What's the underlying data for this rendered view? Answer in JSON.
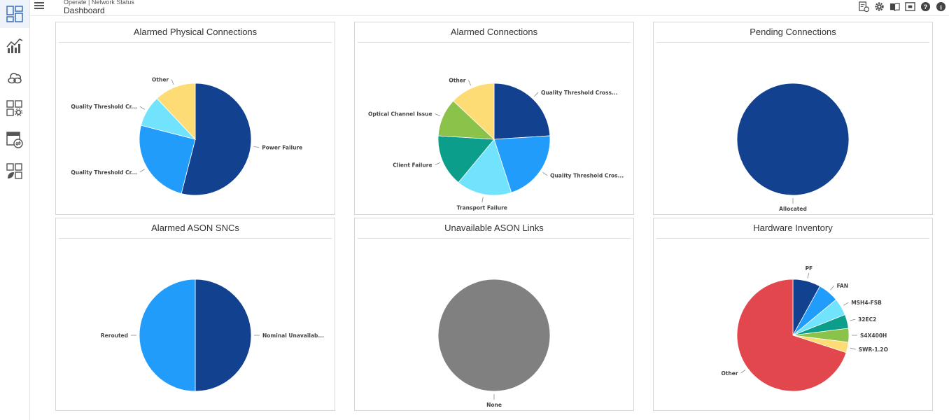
{
  "header": {
    "breadcrumb": "Operate | Network Status",
    "title": "Dashboard"
  },
  "sidebar": {
    "items": [
      {
        "name": "dashboard",
        "icon": "dashboard-grid-icon"
      },
      {
        "name": "performance",
        "icon": "line-chart-icon"
      },
      {
        "name": "connections",
        "icon": "connection-cloud-icon"
      },
      {
        "name": "configuration",
        "icon": "grid-gear-icon"
      },
      {
        "name": "services",
        "icon": "panel-exchange-icon"
      },
      {
        "name": "inventory",
        "icon": "grid-leaf-icon"
      }
    ]
  },
  "toolbar": {
    "icons": [
      "report-clock-icon",
      "gear-icon",
      "book-icon",
      "screen-capture-icon",
      "help-icon",
      "info-icon"
    ]
  },
  "colors": {
    "dark_blue": "#12418f",
    "blue": "#229cfb",
    "light_cyan": "#72e3fd",
    "yellow": "#fddc76",
    "teal": "#0a9e8b",
    "green": "#8bc249",
    "grey": "#808080",
    "red": "#e3474e"
  },
  "panels": {
    "p1": {
      "title": "Alarmed Physical Connections"
    },
    "p2": {
      "title": "Alarmed Connections"
    },
    "p3": {
      "title": "Pending Connections"
    },
    "p4": {
      "title": "Alarmed ASON SNCs"
    },
    "p5": {
      "title": "Unavailable ASON Links"
    },
    "p6": {
      "title": "Hardware Inventory"
    }
  },
  "chart_data": [
    {
      "type": "pie",
      "title": "Alarmed Physical Connections",
      "categories": [
        "Power Failure",
        "Quality Threshold Cr...",
        "Quality Threshold Cr...",
        "Other"
      ],
      "values": [
        54,
        25,
        9,
        12
      ],
      "colors": [
        "#12418f",
        "#229cfb",
        "#72e3fd",
        "#fddc76"
      ]
    },
    {
      "type": "pie",
      "title": "Alarmed Connections",
      "categories": [
        "Quality Threshold Cross...",
        "Quality Threshold Cros...",
        "Transport Failure",
        "Client Failure",
        "Optical Channel Issue",
        "Other"
      ],
      "values": [
        24,
        21,
        16,
        15,
        11,
        13
      ],
      "colors": [
        "#12418f",
        "#229cfb",
        "#72e3fd",
        "#0a9e8b",
        "#8bc249",
        "#fddc76"
      ]
    },
    {
      "type": "pie",
      "title": "Pending Connections",
      "categories": [
        "Allocated"
      ],
      "values": [
        100
      ],
      "colors": [
        "#12418f"
      ]
    },
    {
      "type": "pie",
      "title": "Alarmed ASON SNCs",
      "categories": [
        "Nominal Unavailab...",
        "Rerouted"
      ],
      "values": [
        50,
        50
      ],
      "colors": [
        "#12418f",
        "#229cfb"
      ]
    },
    {
      "type": "pie",
      "title": "Unavailable ASON Links",
      "categories": [
        "None"
      ],
      "values": [
        100
      ],
      "colors": [
        "#808080"
      ]
    },
    {
      "type": "pie",
      "title": "Hardware Inventory",
      "categories": [
        "PF",
        "FAN",
        "MSH4-FSB",
        "32EC2",
        "S4X400H",
        "SWR-1.2O",
        "Other"
      ],
      "values": [
        8,
        6,
        5,
        4,
        4,
        3,
        70
      ],
      "colors": [
        "#12418f",
        "#229cfb",
        "#72e3fd",
        "#0a9e8b",
        "#8bc249",
        "#fddc76",
        "#e3474e"
      ]
    }
  ]
}
